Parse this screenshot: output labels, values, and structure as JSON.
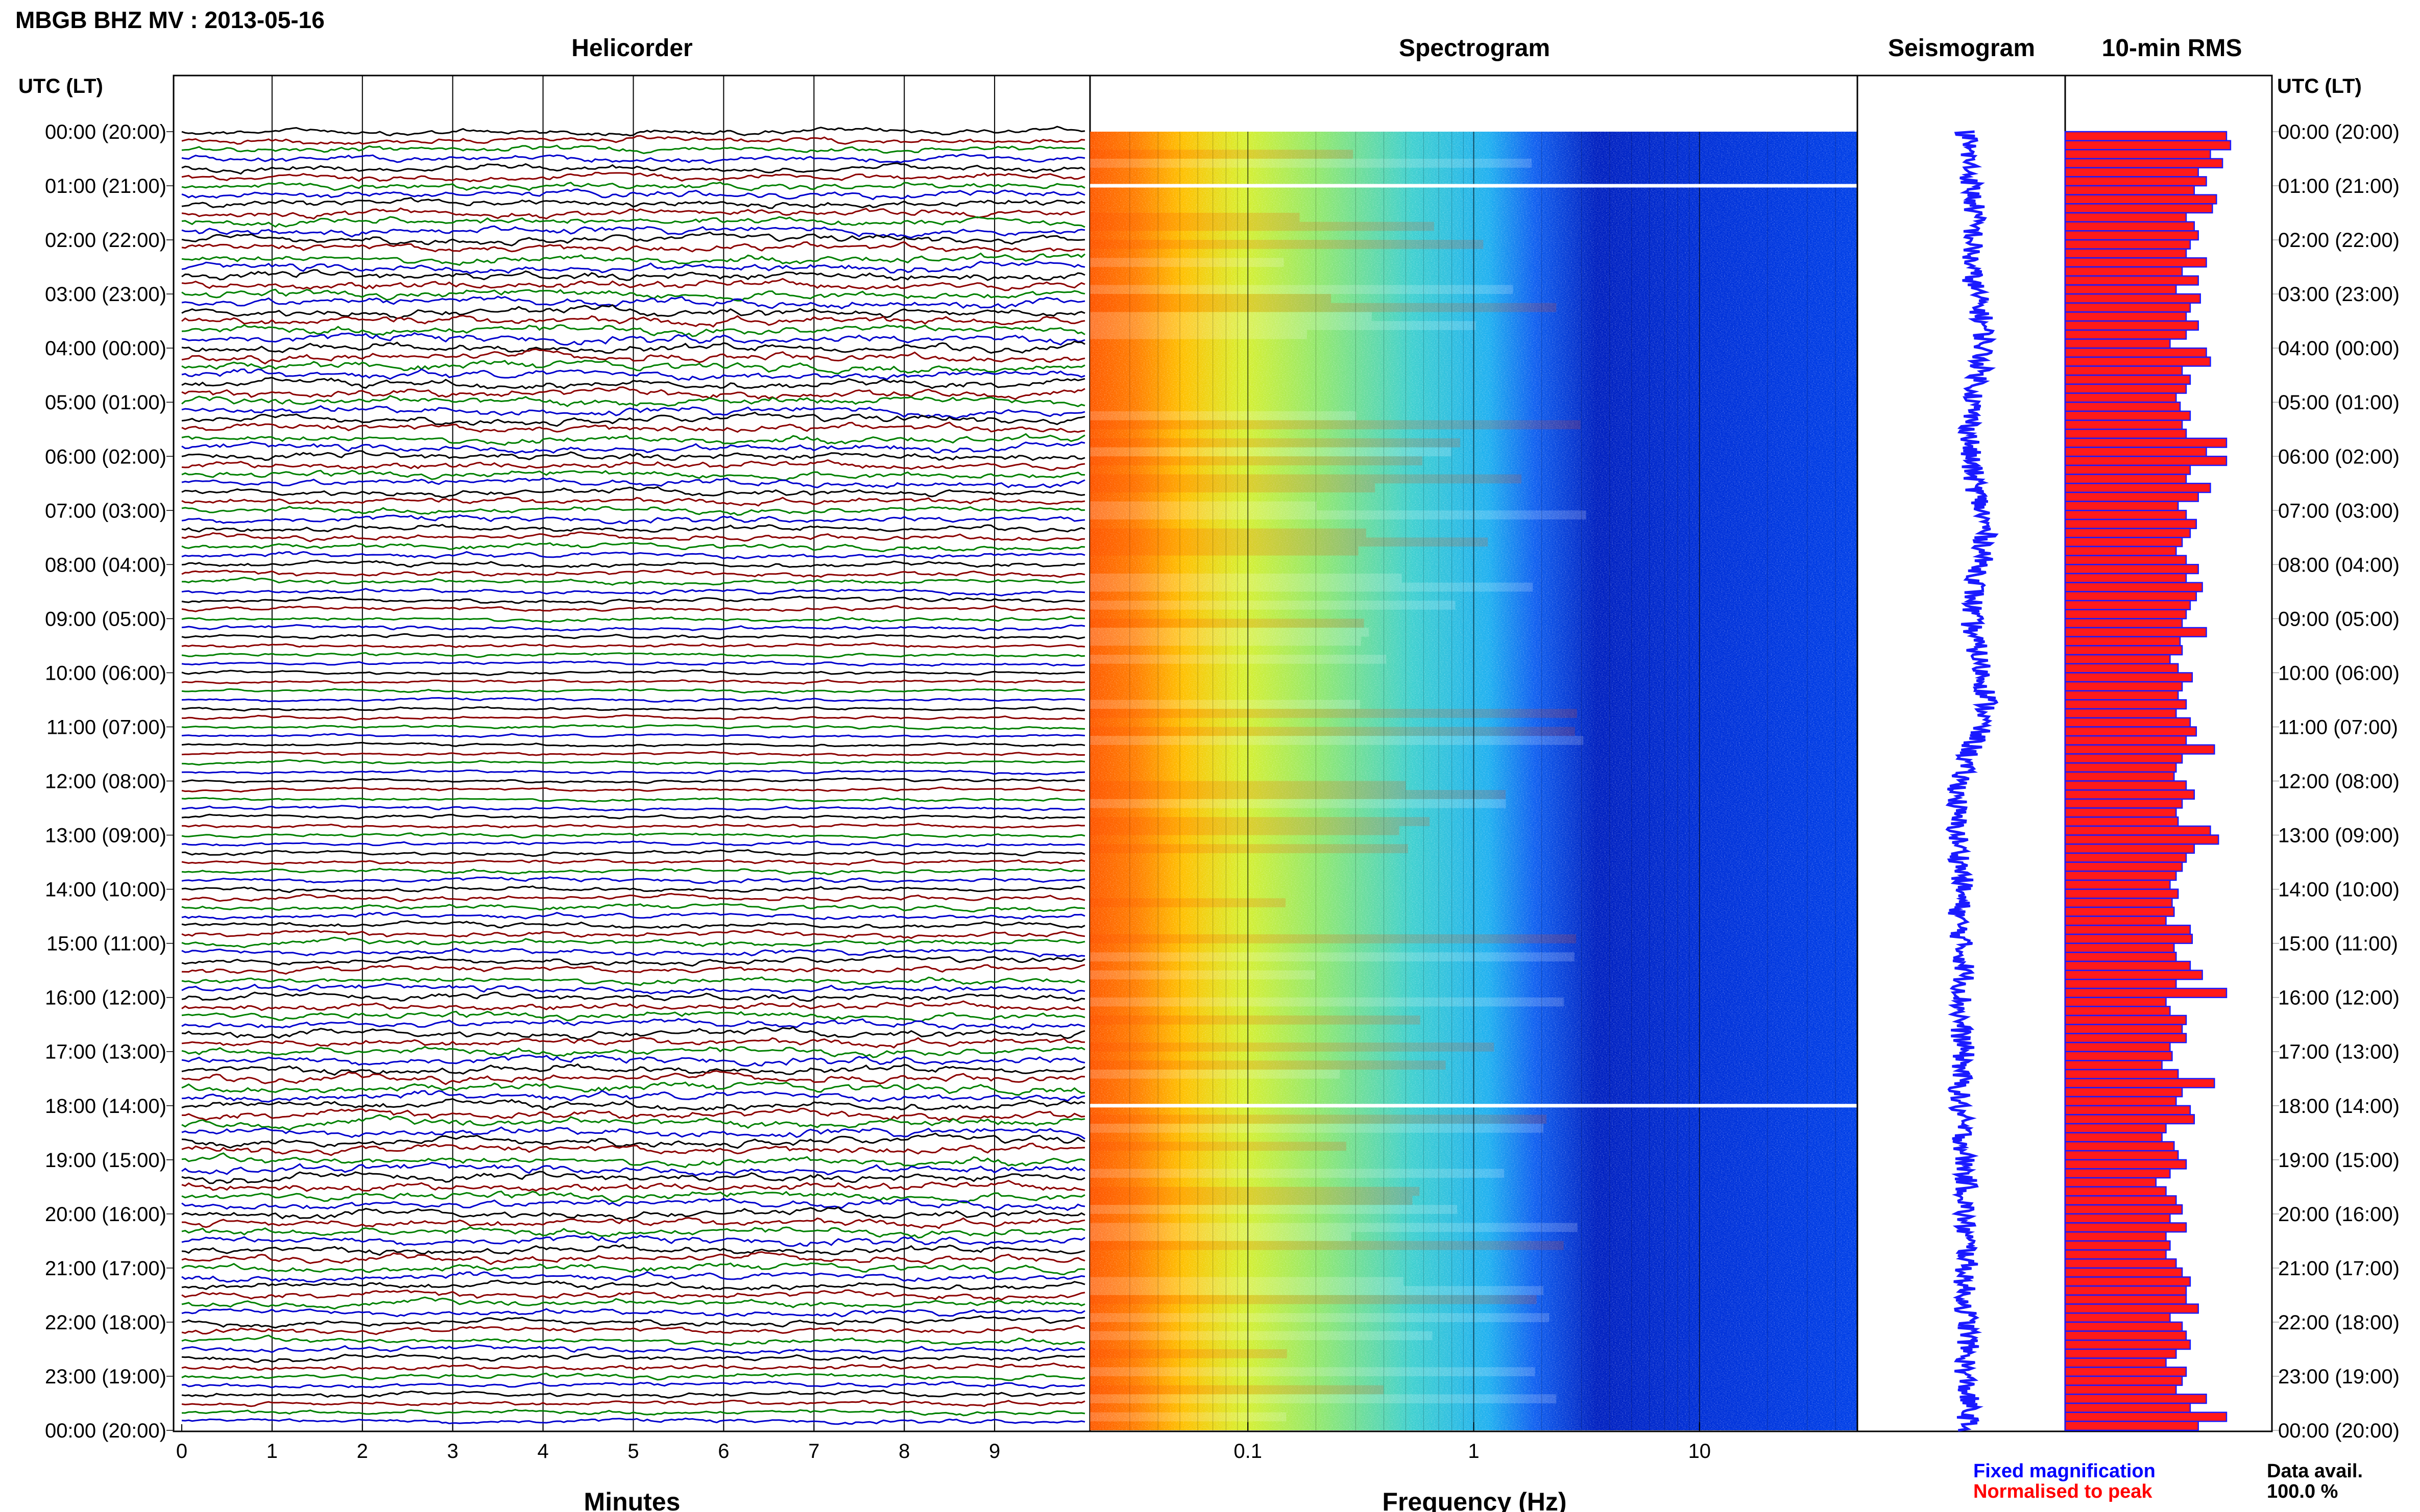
{
  "title": "MBGB BHZ MV : 2013-05-16",
  "panels": {
    "helicorder": "Helicorder",
    "spectrogram": "Spectrogram",
    "seismogram": "Seismogram",
    "rms": "10-min RMS"
  },
  "time_axis_label": "UTC (LT)",
  "time_labels": [
    "00:00 (20:00)",
    "01:00 (21:00)",
    "02:00 (22:00)",
    "03:00 (23:00)",
    "04:00 (00:00)",
    "05:00 (01:00)",
    "06:00 (02:00)",
    "07:00 (03:00)",
    "08:00 (04:00)",
    "09:00 (05:00)",
    "10:00 (06:00)",
    "11:00 (07:00)",
    "12:00 (08:00)",
    "13:00 (09:00)",
    "14:00 (10:00)",
    "15:00 (11:00)",
    "16:00 (12:00)",
    "17:00 (13:00)",
    "18:00 (14:00)",
    "19:00 (15:00)",
    "20:00 (16:00)",
    "21:00 (17:00)",
    "22:00 (18:00)",
    "23:00 (19:00)",
    "00:00 (20:00)"
  ],
  "x_axis_minutes": {
    "label": "Minutes",
    "ticks": [
      "0",
      "1",
      "2",
      "3",
      "4",
      "5",
      "6",
      "7",
      "8",
      "9"
    ]
  },
  "x_axis_frequency": {
    "label": "Frequency (Hz)",
    "ticks": [
      "0.1",
      "1",
      "10"
    ]
  },
  "legend": {
    "fixed": "Fixed magnification",
    "normalised": "Normalised to peak",
    "fixed_color": "#0000ff",
    "normalised_color": "#ff0000"
  },
  "data_avail_label": "Data avail.",
  "data_avail_value": "100.0 %",
  "colors": {
    "trace_cycle": [
      "#000000",
      "#8b0000",
      "#008000",
      "#0000cd"
    ]
  },
  "chart_data": {
    "type": "heatmap",
    "helicorder": {
      "minutes_per_line": 10,
      "lines": 144,
      "x_range_minutes": [
        0,
        10
      ]
    },
    "spectrogram": {
      "freq_range_hz": [
        0.02,
        50
      ],
      "scale": "log",
      "data_gaps_utc": [
        "01:00",
        "18:00"
      ]
    },
    "rms_fixed": [
      0.8,
      0.82,
      0.72,
      0.78,
      0.66,
      0.7,
      0.64,
      0.75,
      0.73,
      0.6,
      0.64,
      0.66,
      0.62,
      0.6,
      0.7,
      0.58,
      0.66,
      0.55,
      0.67,
      0.62,
      0.6,
      0.66,
      0.6,
      0.52,
      0.7,
      0.72,
      0.58,
      0.62,
      0.6,
      0.55,
      0.57,
      0.62,
      0.58,
      0.6,
      0.8,
      0.7,
      0.8,
      0.62,
      0.6,
      0.72,
      0.66,
      0.56,
      0.6,
      0.65,
      0.62,
      0.58,
      0.55,
      0.6,
      0.66,
      0.6,
      0.68,
      0.65,
      0.62,
      0.6,
      0.58,
      0.7,
      0.57,
      0.58,
      0.52,
      0.56,
      0.63,
      0.58,
      0.56,
      0.6,
      0.55,
      0.62,
      0.65,
      0.6,
      0.74,
      0.58,
      0.55,
      0.54,
      0.6,
      0.64,
      0.58,
      0.55,
      0.56,
      0.72,
      0.76,
      0.64,
      0.6,
      0.58,
      0.55,
      0.52,
      0.56,
      0.53,
      0.54,
      0.5,
      0.62,
      0.63,
      0.54,
      0.55,
      0.62,
      0.68,
      0.55,
      0.8,
      0.5,
      0.52,
      0.6,
      0.58,
      0.6,
      0.52,
      0.53,
      0.48,
      0.56,
      0.74,
      0.58,
      0.55,
      0.62,
      0.64,
      0.5,
      0.48,
      0.54,
      0.56,
      0.6,
      0.52,
      0.45,
      0.5,
      0.55,
      0.58,
      0.52,
      0.6,
      0.5,
      0.52,
      0.5,
      0.55,
      0.58,
      0.62,
      0.6,
      0.6,
      0.66,
      0.52,
      0.58,
      0.6,
      0.62,
      0.55,
      0.5,
      0.6,
      0.58,
      0.55,
      0.7,
      0.62,
      0.8,
      0.66
    ],
    "seismogram_center_offsets": [
      0.0,
      0.01,
      0.02,
      0.02,
      0.03,
      0.04,
      0.05,
      0.06,
      0.07,
      0.08,
      0.08,
      0.07,
      0.06,
      0.05,
      0.04,
      0.05,
      0.06,
      0.08,
      0.1,
      0.12,
      0.14,
      0.16,
      0.17,
      0.17,
      0.16,
      0.15,
      0.14,
      0.12,
      0.1,
      0.08,
      0.06,
      0.05,
      0.04,
      0.04,
      0.03,
      0.03,
      0.04,
      0.05,
      0.07,
      0.09,
      0.11,
      0.13,
      0.15,
      0.17,
      0.18,
      0.18,
      0.17,
      0.15,
      0.13,
      0.11,
      0.09,
      0.07,
      0.06,
      0.05,
      0.05,
      0.06,
      0.08,
      0.1,
      0.12,
      0.14,
      0.16,
      0.18,
      0.19,
      0.2,
      0.18,
      0.15,
      0.12,
      0.08,
      0.04,
      0.0,
      -0.03,
      -0.05,
      -0.07,
      -0.08,
      -0.09,
      -0.1,
      -0.1,
      -0.09,
      -0.08,
      -0.07,
      -0.06,
      -0.05,
      -0.04,
      -0.04,
      -0.05,
      -0.06,
      -0.07,
      -0.07,
      -0.06,
      -0.05,
      -0.04,
      -0.03,
      -0.02,
      -0.02,
      -0.03,
      -0.04,
      -0.05,
      -0.06,
      -0.06,
      -0.05,
      -0.04,
      -0.03,
      -0.03,
      -0.04,
      -0.05,
      -0.06,
      -0.07,
      -0.07,
      -0.06,
      -0.05,
      -0.04,
      -0.03,
      -0.02,
      -0.02,
      -0.01,
      -0.01,
      0.0,
      0.0,
      -0.01,
      -0.02,
      -0.02,
      -0.01,
      0.0,
      0.01,
      0.01,
      0.0,
      -0.01,
      -0.02,
      -0.02,
      -0.01,
      0.0,
      0.01,
      0.02,
      0.02,
      0.01,
      0.0,
      -0.01,
      -0.01,
      0.0,
      0.01,
      0.02,
      0.02,
      0.01,
      0.0
    ]
  }
}
